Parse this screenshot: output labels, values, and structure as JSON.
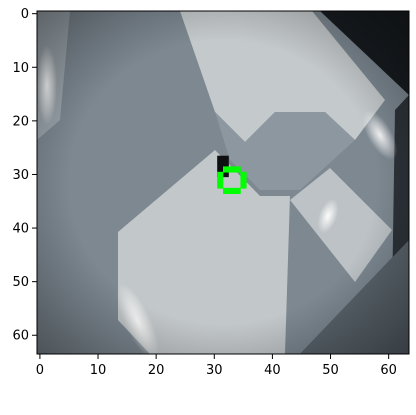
{
  "image": {
    "type": "pixel-image",
    "grid_size": [
      64,
      64
    ],
    "description_colors": {
      "background_dark": "#3a4249",
      "surface_mid": "#7c8790",
      "pattern_light": "#c6cbcc",
      "corner_black": "#14181b",
      "highlight": "#eef2f4",
      "marker": "#00ff00"
    }
  },
  "axes": {
    "x_ticks": [
      "0",
      "10",
      "20",
      "30",
      "40",
      "50",
      "60"
    ],
    "y_ticks": [
      "0",
      "10",
      "20",
      "30",
      "40",
      "50",
      "60"
    ],
    "xlim": [
      -0.5,
      63.5
    ],
    "ylim": [
      63.5,
      -0.5
    ]
  },
  "marker": {
    "shape": "ring",
    "center": [
      33,
      31
    ],
    "radius": 2.5,
    "color": "#00ff00"
  },
  "dark_notch": {
    "x_range": [
      30.5,
      32.5
    ],
    "y_range": [
      26.5,
      30.5
    ]
  }
}
